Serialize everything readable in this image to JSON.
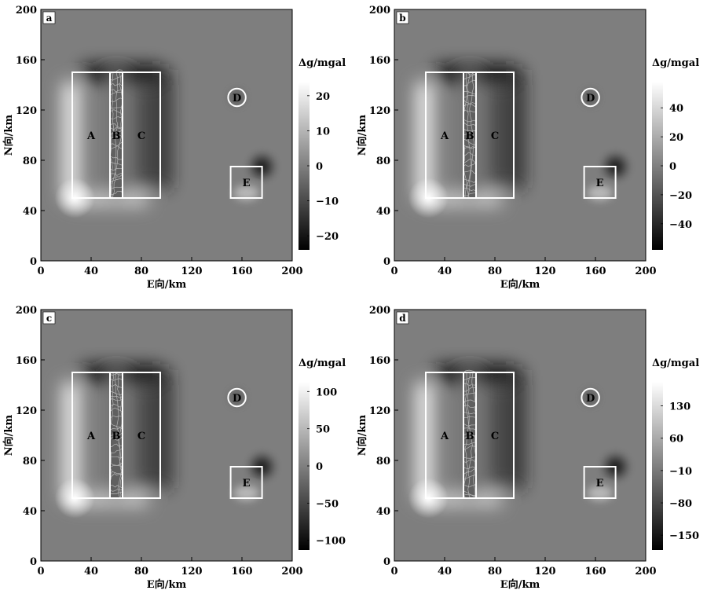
{
  "chart_data": [
    {
      "type": "heatmap",
      "panel_label": "a",
      "xlabel": "E向/km",
      "ylabel": "N向/km",
      "xlim": [
        0,
        200
      ],
      "ylim": [
        0,
        200
      ],
      "xticks": [
        0,
        40,
        80,
        120,
        160,
        200
      ],
      "yticks": [
        0,
        40,
        80,
        120,
        160,
        200
      ],
      "colorbar_label": "Δg/mgal",
      "colorbar_range": [
        -24,
        24
      ],
      "colorbar_ticks": [
        20,
        10,
        0,
        -10,
        -20
      ],
      "colormap": "grayscale (black = negative, white = positive)",
      "regions": [
        {
          "name": "A",
          "shape": "rectangle",
          "x": [
            25,
            55
          ],
          "y": [
            50,
            150
          ]
        },
        {
          "name": "B",
          "shape": "rectangle",
          "x": [
            55,
            65
          ],
          "y": [
            50,
            150
          ]
        },
        {
          "name": "C",
          "shape": "rectangle",
          "x": [
            65,
            95
          ],
          "y": [
            50,
            150
          ]
        },
        {
          "name": "D",
          "shape": "circle",
          "center": [
            156,
            130
          ],
          "radius": 7
        },
        {
          "name": "E",
          "shape": "rectangle",
          "x": [
            151,
            176
          ],
          "y": [
            50,
            75
          ]
        }
      ]
    },
    {
      "type": "heatmap",
      "panel_label": "b",
      "xlabel": "E向/km",
      "ylabel": "N向/km",
      "xlim": [
        0,
        200
      ],
      "ylim": [
        0,
        200
      ],
      "xticks": [
        0,
        40,
        80,
        120,
        160,
        200
      ],
      "yticks": [
        0,
        40,
        80,
        120,
        160,
        200
      ],
      "colorbar_label": "Δg/mgal",
      "colorbar_range": [
        -58,
        58
      ],
      "colorbar_ticks": [
        40,
        20,
        0,
        -20,
        -40
      ],
      "colormap": "grayscale (black = negative, white = positive)",
      "regions": [
        {
          "name": "A",
          "shape": "rectangle",
          "x": [
            25,
            55
          ],
          "y": [
            50,
            150
          ]
        },
        {
          "name": "B",
          "shape": "rectangle",
          "x": [
            55,
            65
          ],
          "y": [
            50,
            150
          ]
        },
        {
          "name": "C",
          "shape": "rectangle",
          "x": [
            65,
            95
          ],
          "y": [
            50,
            150
          ]
        },
        {
          "name": "D",
          "shape": "circle",
          "center": [
            156,
            130
          ],
          "radius": 7
        },
        {
          "name": "E",
          "shape": "rectangle",
          "x": [
            151,
            176
          ],
          "y": [
            50,
            75
          ]
        }
      ]
    },
    {
      "type": "heatmap",
      "panel_label": "c",
      "xlabel": "E向/km",
      "ylabel": "N向/km",
      "xlim": [
        0,
        200
      ],
      "ylim": [
        0,
        200
      ],
      "xticks": [
        0,
        40,
        80,
        120,
        160,
        200
      ],
      "yticks": [
        0,
        40,
        80,
        120,
        160,
        200
      ],
      "colorbar_label": "Δg/mgal",
      "colorbar_range": [
        -113,
        113
      ],
      "colorbar_ticks": [
        100,
        50,
        0,
        -50,
        -100
      ],
      "colormap": "grayscale (black = negative, white = positive)",
      "regions": [
        {
          "name": "A",
          "shape": "rectangle",
          "x": [
            25,
            55
          ],
          "y": [
            50,
            150
          ]
        },
        {
          "name": "B",
          "shape": "rectangle",
          "x": [
            55,
            65
          ],
          "y": [
            50,
            150
          ]
        },
        {
          "name": "C",
          "shape": "rectangle",
          "x": [
            65,
            95
          ],
          "y": [
            50,
            150
          ]
        },
        {
          "name": "D",
          "shape": "circle",
          "center": [
            156,
            130
          ],
          "radius": 7
        },
        {
          "name": "E",
          "shape": "rectangle",
          "x": [
            151,
            176
          ],
          "y": [
            50,
            75
          ]
        }
      ]
    },
    {
      "type": "heatmap",
      "panel_label": "d",
      "xlabel": "E向/km",
      "ylabel": "N向/km",
      "xlim": [
        0,
        200
      ],
      "ylim": [
        0,
        200
      ],
      "xticks": [
        0,
        40,
        80,
        120,
        160,
        200
      ],
      "yticks": [
        0,
        40,
        80,
        120,
        160,
        200
      ],
      "colorbar_label": "Δg/mgal",
      "colorbar_range": [
        -182,
        182
      ],
      "colorbar_ticks": [
        130,
        60,
        -10,
        -80,
        -150
      ],
      "colormap": "grayscale (black = negative, white = positive)",
      "regions": [
        {
          "name": "A",
          "shape": "rectangle",
          "x": [
            25,
            55
          ],
          "y": [
            50,
            150
          ]
        },
        {
          "name": "B",
          "shape": "rectangle",
          "x": [
            55,
            65
          ],
          "y": [
            50,
            150
          ]
        },
        {
          "name": "C",
          "shape": "rectangle",
          "x": [
            65,
            95
          ],
          "y": [
            50,
            150
          ]
        },
        {
          "name": "D",
          "shape": "circle",
          "center": [
            156,
            130
          ],
          "radius": 7
        },
        {
          "name": "E",
          "shape": "rectangle",
          "x": [
            151,
            176
          ],
          "y": [
            50,
            75
          ]
        }
      ]
    }
  ]
}
